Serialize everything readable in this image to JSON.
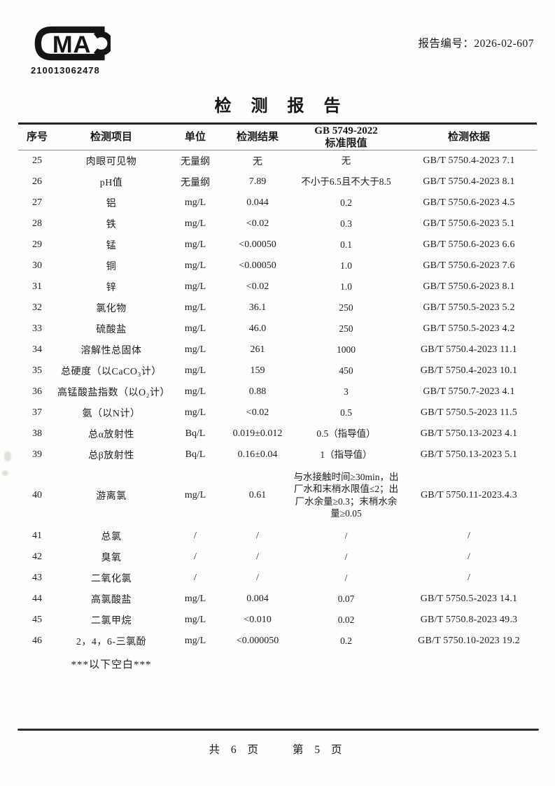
{
  "header": {
    "report_no_label": "报告编号：",
    "report_no_value": "2026-02-607",
    "cma_letters": "MA",
    "cma_number": "210013062478"
  },
  "title": "检测报告",
  "table": {
    "col_headers": {
      "no": "序号",
      "item": "检测项目",
      "unit": "单位",
      "result": "检测结果",
      "limit_line1": "GB 5749-2022",
      "limit_line2": "标准限值",
      "method": "检测依据"
    },
    "rows": [
      {
        "no": "25",
        "item": "肉眼可见物",
        "unit": "无量纲",
        "result": "无",
        "limit": "无",
        "method": "GB/T 5750.4-2023 7.1"
      },
      {
        "no": "26",
        "item": "pH值",
        "unit": "无量纲",
        "result": "7.89",
        "limit": "不小于6.5且不大于8.5",
        "method": "GB/T 5750.4-2023 8.1"
      },
      {
        "no": "27",
        "item": "铝",
        "unit": "mg/L",
        "result": "0.044",
        "limit": "0.2",
        "method": "GB/T 5750.6-2023 4.5"
      },
      {
        "no": "28",
        "item": "铁",
        "unit": "mg/L",
        "result": "<0.02",
        "limit": "0.3",
        "method": "GB/T 5750.6-2023 5.1"
      },
      {
        "no": "29",
        "item": "锰",
        "unit": "mg/L",
        "result": "<0.00050",
        "limit": "0.1",
        "method": "GB/T 5750.6-2023 6.6"
      },
      {
        "no": "30",
        "item": "铜",
        "unit": "mg/L",
        "result": "<0.00050",
        "limit": "1.0",
        "method": "GB/T 5750.6-2023 7.6"
      },
      {
        "no": "31",
        "item": "锌",
        "unit": "mg/L",
        "result": "<0.02",
        "limit": "1.0",
        "method": "GB/T 5750.6-2023 8.1"
      },
      {
        "no": "32",
        "item": "氯化物",
        "unit": "mg/L",
        "result": "36.1",
        "limit": "250",
        "method": "GB/T 5750.5-2023 5.2"
      },
      {
        "no": "33",
        "item": "硫酸盐",
        "unit": "mg/L",
        "result": "46.0",
        "limit": "250",
        "method": "GB/T 5750.5-2023 4.2"
      },
      {
        "no": "34",
        "item": "溶解性总固体",
        "unit": "mg/L",
        "result": "261",
        "limit": "1000",
        "method": "GB/T 5750.4-2023 11.1"
      },
      {
        "no": "35",
        "item": "总硬度（以CaCO₃计）",
        "unit": "mg/L",
        "result": "159",
        "limit": "450",
        "method": "GB/T 5750.4-2023 10.1"
      },
      {
        "no": "36",
        "item": "高锰酸盐指数（以O₂计）",
        "unit": "mg/L",
        "result": "0.88",
        "limit": "3",
        "method": "GB/T 5750.7-2023 4.1"
      },
      {
        "no": "37",
        "item": "氨（以N计）",
        "unit": "mg/L",
        "result": "<0.02",
        "limit": "0.5",
        "method": "GB/T 5750.5-2023 11.5"
      },
      {
        "no": "38",
        "item": "总α放射性",
        "unit": "Bq/L",
        "result": "0.019±0.012",
        "limit": "0.5（指导值）",
        "method": "GB/T 5750.13-2023 4.1"
      },
      {
        "no": "39",
        "item": "总β放射性",
        "unit": "Bq/L",
        "result": "0.16±0.04",
        "limit": "1（指导值）",
        "method": "GB/T 5750.13-2023 5.1"
      },
      {
        "no": "40",
        "item": "游离氯",
        "unit": "mg/L",
        "result": "0.61",
        "limit": "与水接触时间≥30min，出厂水和末梢水限值≤2；出厂水余量≥0.3；末梢水余量≥0.05",
        "method": "GB/T 5750.11-2023.4.3",
        "tall": true
      },
      {
        "no": "41",
        "item": "总氯",
        "unit": "/",
        "result": "/",
        "limit": "/",
        "method": "/"
      },
      {
        "no": "42",
        "item": "臭氧",
        "unit": "/",
        "result": "/",
        "limit": "/",
        "method": "/"
      },
      {
        "no": "43",
        "item": "二氧化氯",
        "unit": "/",
        "result": "/",
        "limit": "/",
        "method": "/"
      },
      {
        "no": "44",
        "item": "高氯酸盐",
        "unit": "mg/L",
        "result": "0.004",
        "limit": "0.07",
        "method": "GB/T 5750.5-2023 14.1"
      },
      {
        "no": "45",
        "item": "二氯甲烷",
        "unit": "mg/L",
        "result": "<0.010",
        "limit": "0.02",
        "method": "GB/T 5750.8-2023 49.3"
      },
      {
        "no": "46",
        "item": "2，4，6-三氯酚",
        "unit": "mg/L",
        "result": "<0.000050",
        "limit": "0.2",
        "method": "GB/T 5750.10-2023 19.2"
      }
    ],
    "blank_note": "***以下空白***"
  },
  "footer": {
    "page_info": "共 6 页　　第 5 页"
  }
}
